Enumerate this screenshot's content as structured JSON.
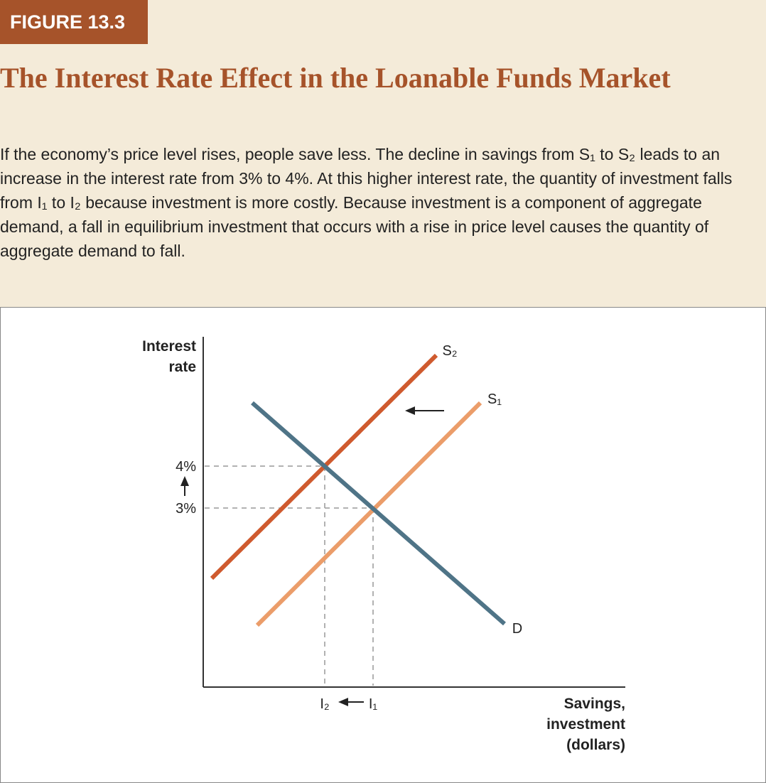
{
  "header": {
    "figure_label": "FIGURE 13.3",
    "title": "The Interest Rate Effect in the Loanable Funds Market",
    "caption": "If the economy’s price level rises, people save less. The decline in savings from S₁ to S₂ leads to an increase in the interest rate from 3% to 4%. At this higher interest rate, the quantity of investment falls from I₁ to I₂ because investment is more costly. Because investment is a component of aggregate demand, a fall in equilibrium investment that occurs with a rise in price level causes the quantity of aggregate demand to fall."
  },
  "diagram": {
    "y_axis_label": [
      "Interest",
      "rate"
    ],
    "x_axis_label": [
      "Savings,",
      "investment",
      "(dollars)"
    ],
    "y_labels": [
      "4%",
      "3%"
    ],
    "x_labels": [
      "I₂",
      "I₁"
    ],
    "curves": [
      {
        "label": "S₂"
      },
      {
        "label": "S₁"
      },
      {
        "label": "D"
      }
    ]
  }
}
